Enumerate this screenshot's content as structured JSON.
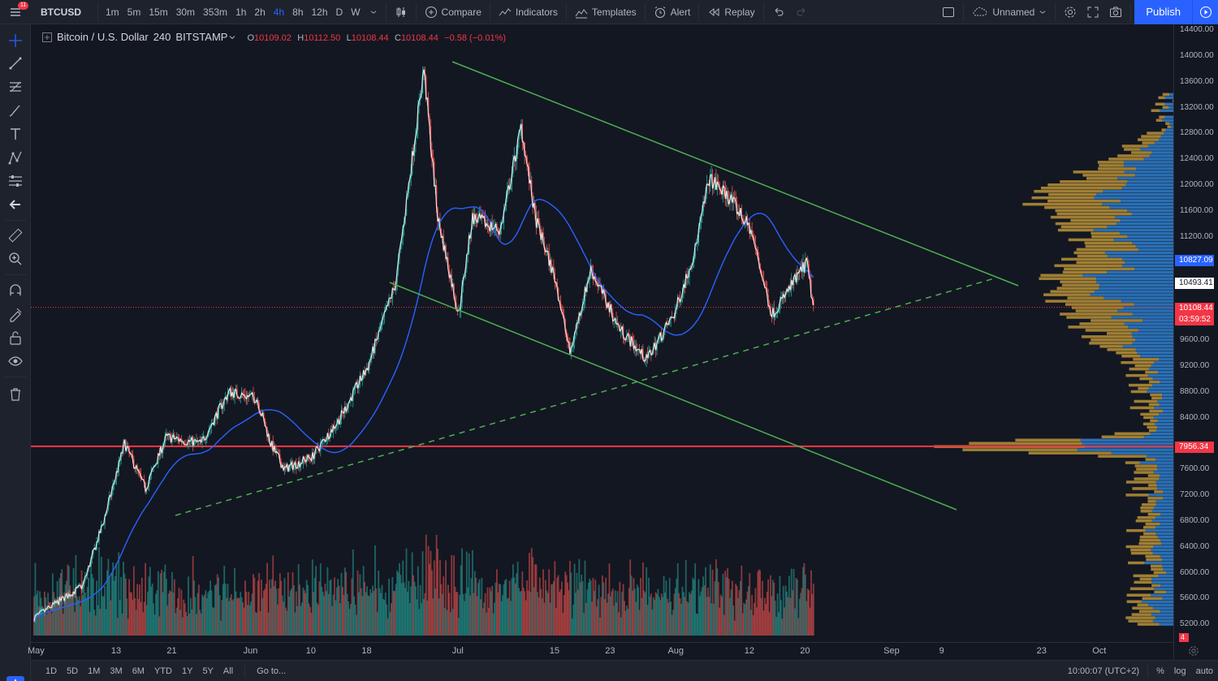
{
  "topbar": {
    "badge": "11",
    "symbol": "BTCUSD",
    "intervals": [
      "1m",
      "5m",
      "15m",
      "30m",
      "353m",
      "1h",
      "2h",
      "4h",
      "8h",
      "12h",
      "D",
      "W"
    ],
    "active_interval": "4h",
    "compare": "Compare",
    "indicators": "Indicators",
    "templates": "Templates",
    "alert": "Alert",
    "replay": "Replay",
    "layout_name": "Unnamed",
    "publish": "Publish"
  },
  "legend": {
    "title": "Bitcoin / U.S. Dollar",
    "interval": "240",
    "exchange": "BITSTAMP",
    "o_key": "O",
    "o": "10109.02",
    "h_key": "H",
    "h": "10112.50",
    "l_key": "L",
    "l": "10108.44",
    "c_key": "C",
    "c": "10108.44",
    "change": "−0.58 (−0.01%)"
  },
  "price_axis": {
    "labels": [
      "14400.00",
      "14000.00",
      "13600.00",
      "13200.00",
      "12800.00",
      "12400.00",
      "12000.00",
      "11600.00",
      "11200.00",
      "9600.00",
      "9200.00",
      "8800.00",
      "8400.00",
      "7600.00",
      "7200.00",
      "6800.00",
      "6400.00",
      "6000.00",
      "5600.00",
      "5200.00"
    ],
    "tag_ma": "10827.09",
    "tag_cross": "10493.41",
    "tag_last": "10108.44",
    "tag_countdown": "03:59:52",
    "tag_level": "7956.34",
    "tag_small": "4"
  },
  "time_axis": [
    "May",
    "13",
    "21",
    "Jun",
    "10",
    "18",
    "Jul",
    "15",
    "23",
    "Aug",
    "12",
    "20",
    "Sep",
    "9",
    "23",
    "Oct"
  ],
  "bottombar": {
    "ranges": [
      "1D",
      "5D",
      "1M",
      "3M",
      "6M",
      "YTD",
      "1Y",
      "5Y",
      "All"
    ],
    "goto": "Go to...",
    "clock": "10:00:07 (UTC+2)",
    "pct": "%",
    "log": "log",
    "auto": "auto"
  },
  "colors": {
    "up": "#26a69a",
    "down": "#ef5350",
    "ma": "#2962ff",
    "trendline": "#4caf50",
    "level_line": "#f23645",
    "vp_up": "#2f7fcf",
    "vp_down": "#c49a3a"
  },
  "chart_data": {
    "type": "candlestick",
    "title": "Bitcoin / U.S. Dollar, 240, BITSTAMP",
    "ylim": [
      5000,
      14500
    ],
    "x_ticks": [
      "May",
      "13",
      "21",
      "Jun",
      "10",
      "18",
      "Jul",
      "15",
      "23",
      "Aug",
      "12",
      "20",
      "Sep",
      "9",
      "23",
      "Oct"
    ],
    "price_path": [
      [
        "May 1",
        5300
      ],
      [
        "May 8",
        5800
      ],
      [
        "May 11",
        6800
      ],
      [
        "May 14",
        8000
      ],
      [
        "May 17",
        7300
      ],
      [
        "May 20",
        8100
      ],
      [
        "May 25",
        8000
      ],
      [
        "May 29",
        8800
      ],
      [
        "Jun 2",
        8700
      ],
      [
        "Jun 4",
        8000
      ],
      [
        "Jun 6",
        7600
      ],
      [
        "Jun 10",
        7800
      ],
      [
        "Jun 14",
        8400
      ],
      [
        "Jun 18",
        9200
      ],
      [
        "Jun 22",
        10500
      ],
      [
        "Jun 26",
        13800
      ],
      [
        "Jun 28",
        11500
      ],
      [
        "Jul 1",
        10000
      ],
      [
        "Jul 3",
        11500
      ],
      [
        "Jul 7",
        11300
      ],
      [
        "Jul 10",
        12900
      ],
      [
        "Jul 12",
        11500
      ],
      [
        "Jul 15",
        10500
      ],
      [
        "Jul 17",
        9400
      ],
      [
        "Jul 20",
        10700
      ],
      [
        "Jul 24",
        9800
      ],
      [
        "Jul 28",
        9300
      ],
      [
        "Aug 1",
        10000
      ],
      [
        "Aug 4",
        11000
      ],
      [
        "Aug 6",
        12100
      ],
      [
        "Aug 9",
        11800
      ],
      [
        "Aug 12",
        11300
      ],
      [
        "Aug 15",
        10000
      ],
      [
        "Aug 17",
        10300
      ],
      [
        "Aug 20",
        10800
      ],
      [
        "Aug 21",
        10108.44
      ]
    ],
    "horizontal_level": 7956.34,
    "last_price": 10108.44
  }
}
